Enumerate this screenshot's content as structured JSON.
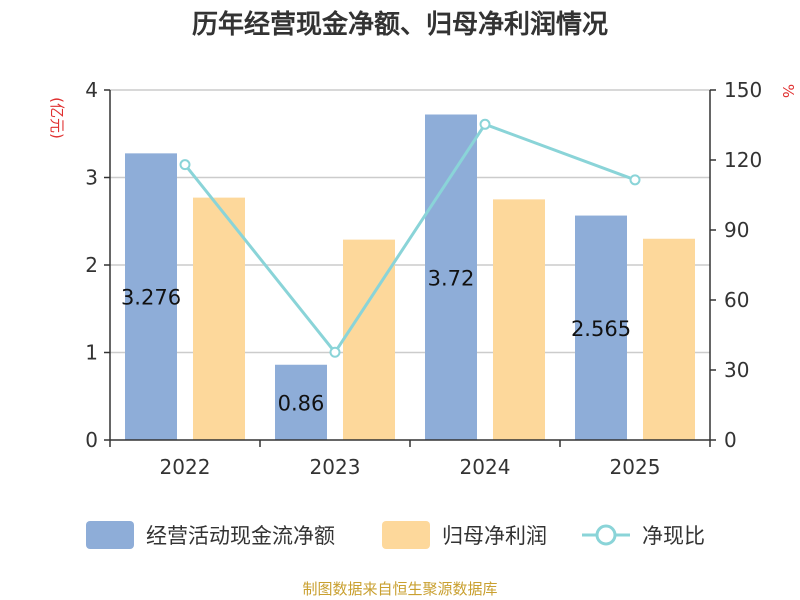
{
  "chart_data": {
    "type": "bar",
    "title": "历年经营现金净额、归母净利润情况",
    "categories": [
      "2022",
      "2023",
      "2024",
      "2025"
    ],
    "series": [
      {
        "name": "经营活动现金流净额",
        "type": "bar",
        "axis": "left",
        "values": [
          3.276,
          0.86,
          3.72,
          2.565
        ],
        "color": "#8eadd8"
      },
      {
        "name": "归母净利润",
        "type": "bar",
        "axis": "left",
        "values": [
          2.77,
          2.29,
          2.75,
          2.3
        ],
        "color": "#fdd89b"
      },
      {
        "name": "净现比",
        "type": "line",
        "axis": "right",
        "values": [
          118,
          37.6,
          135.3,
          111.5
        ],
        "color": "#8ad4d8"
      }
    ],
    "data_labels": [
      "3.276",
      "0.86",
      "3.72",
      "2.565"
    ],
    "y_left": {
      "unit": "(亿元)",
      "ylim": [
        0,
        4
      ],
      "ticks": [
        "0",
        "1",
        "2",
        "3",
        "4"
      ]
    },
    "y_right": {
      "unit": "%",
      "ylim": [
        0,
        150
      ],
      "ticks": [
        "0",
        "30",
        "60",
        "90",
        "120",
        "150"
      ]
    },
    "grid": true,
    "legend_position": "bottom"
  },
  "source": "制图数据来自恒生聚源数据库"
}
